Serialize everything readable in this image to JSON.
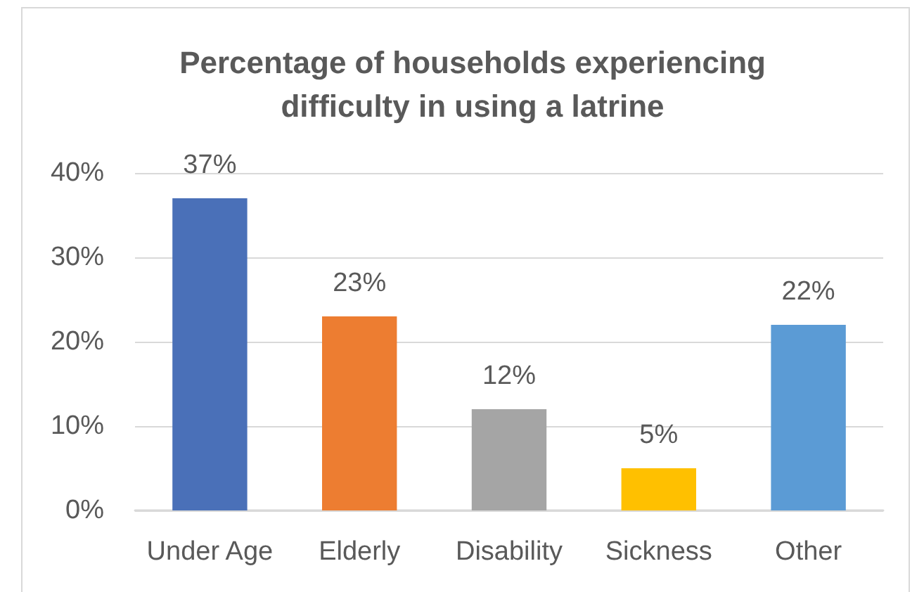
{
  "chart_data": {
    "type": "bar",
    "title": "Percentage of households experiencing\ndifficulty in using a latrine",
    "categories": [
      "Under Age",
      "Elderly",
      "Disability",
      "Sickness",
      "Other"
    ],
    "values": [
      37,
      23,
      12,
      5,
      22
    ],
    "colors": [
      "#4a70b8",
      "#ed7d31",
      "#a5a5a5",
      "#ffc000",
      "#5b9bd5"
    ],
    "value_labels": [
      "37%",
      "23%",
      "12%",
      "5%",
      "22%"
    ],
    "ylim": [
      0,
      40
    ],
    "yticks": [
      {
        "value": 0,
        "label": "0%"
      },
      {
        "value": 10,
        "label": "10%"
      },
      {
        "value": 20,
        "label": "20%"
      },
      {
        "value": 30,
        "label": "30%"
      },
      {
        "value": 40,
        "label": "40%"
      }
    ],
    "grid": "y"
  }
}
